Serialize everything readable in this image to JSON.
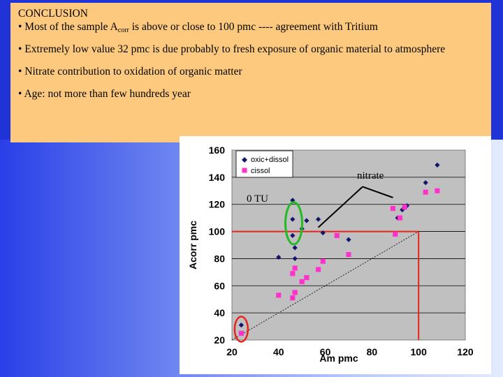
{
  "conclusion": {
    "heading": "CONCLUSION",
    "b1_pre": "• Most of the sample A",
    "b1_sub": "corr",
    "b1_post": " is above or close to 100 pmc ---- agreement with Tritium",
    "b2": "• Extremely low value 32 pmc is due probably to fresh exposure of organic material to atmosphere",
    "b3": "• Nitrate contribution to oxidation of organic matter",
    "b4": "• Age: not more than few hundreds year"
  },
  "chart_data": {
    "type": "scatter",
    "xlabel": "Am pmc",
    "ylabel": "Acorr pmc",
    "xlim": [
      20,
      120
    ],
    "ylim": [
      20,
      160
    ],
    "xticks": [
      20,
      40,
      60,
      80,
      100,
      120
    ],
    "yticks": [
      20,
      40,
      60,
      80,
      100,
      120,
      140,
      160
    ],
    "grid": "horizontal",
    "legend_position": "top-left",
    "colors": {
      "plot_bg": "#c0c0c0",
      "oxic": "#14146e",
      "cissol": "#ff33cc",
      "reference": "#e8231a",
      "circle_green": "#22bb22",
      "circle_red": "#e8231a"
    },
    "series": [
      {
        "name": "oxic+dissol",
        "marker": "diamond",
        "points": [
          [
            24,
            31
          ],
          [
            40,
            81
          ],
          [
            46,
            123
          ],
          [
            46,
            109
          ],
          [
            46,
            97
          ],
          [
            47,
            88
          ],
          [
            47,
            80
          ],
          [
            50,
            102
          ],
          [
            52,
            108
          ],
          [
            57,
            109
          ],
          [
            59,
            99
          ],
          [
            70,
            94
          ],
          [
            91,
            110
          ],
          [
            93,
            116
          ],
          [
            95,
            119
          ],
          [
            103,
            136
          ],
          [
            108,
            149
          ]
        ]
      },
      {
        "name": "cissol",
        "marker": "square",
        "points": [
          [
            24,
            25
          ],
          [
            40,
            53
          ],
          [
            46,
            69
          ],
          [
            47,
            73
          ],
          [
            46,
            51
          ],
          [
            47,
            55
          ],
          [
            50,
            63
          ],
          [
            52,
            66
          ],
          [
            57,
            72
          ],
          [
            59,
            78
          ],
          [
            65,
            97
          ],
          [
            70,
            83
          ],
          [
            89,
            117
          ],
          [
            92,
            110
          ],
          [
            94,
            118
          ],
          [
            90,
            98
          ],
          [
            103,
            129
          ],
          [
            108,
            130
          ]
        ]
      }
    ],
    "reference_lines": {
      "x": 100,
      "y": 100
    },
    "trend_line": {
      "from": [
        20,
        20
      ],
      "to": [
        100,
        100
      ]
    },
    "annotations": {
      "nitrate": "nitrate",
      "zero_tu": "0 TU"
    }
  }
}
